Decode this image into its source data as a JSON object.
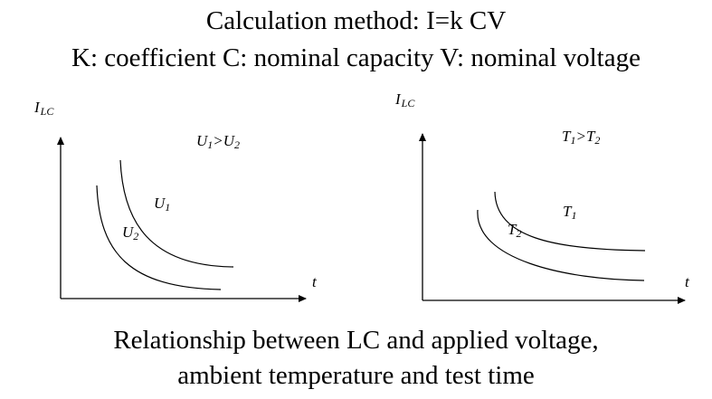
{
  "header": {
    "line1": "Calculation method: I=k CV",
    "line2": "K: coefficient C: nominal capacity V: nominal voltage"
  },
  "left_plot": {
    "y_axis_label": {
      "symbol": "I",
      "subscript": "LC"
    },
    "x_axis_label": "t",
    "condition": {
      "a": "U",
      "a_sub": "1",
      "op": ">",
      "b": "U",
      "b_sub": "2"
    },
    "curve_upper": {
      "symbol": "U",
      "subscript": "1"
    },
    "curve_lower": {
      "symbol": "U",
      "subscript": "2"
    }
  },
  "right_plot": {
    "y_axis_label": {
      "symbol": "I",
      "subscript": "LC"
    },
    "x_axis_label": "t",
    "condition": {
      "a": "T",
      "a_sub": "1",
      "op": ">",
      "b": "T",
      "b_sub": "2"
    },
    "curve_upper": {
      "symbol": "T",
      "subscript": "1"
    },
    "curve_lower": {
      "symbol": "T",
      "subscript": "2"
    }
  },
  "caption": {
    "line1": "Relationship between LC and applied voltage,",
    "line2": "ambient temperature and test time"
  },
  "colors": {
    "background": "#ffffff",
    "ink": "#000000"
  }
}
